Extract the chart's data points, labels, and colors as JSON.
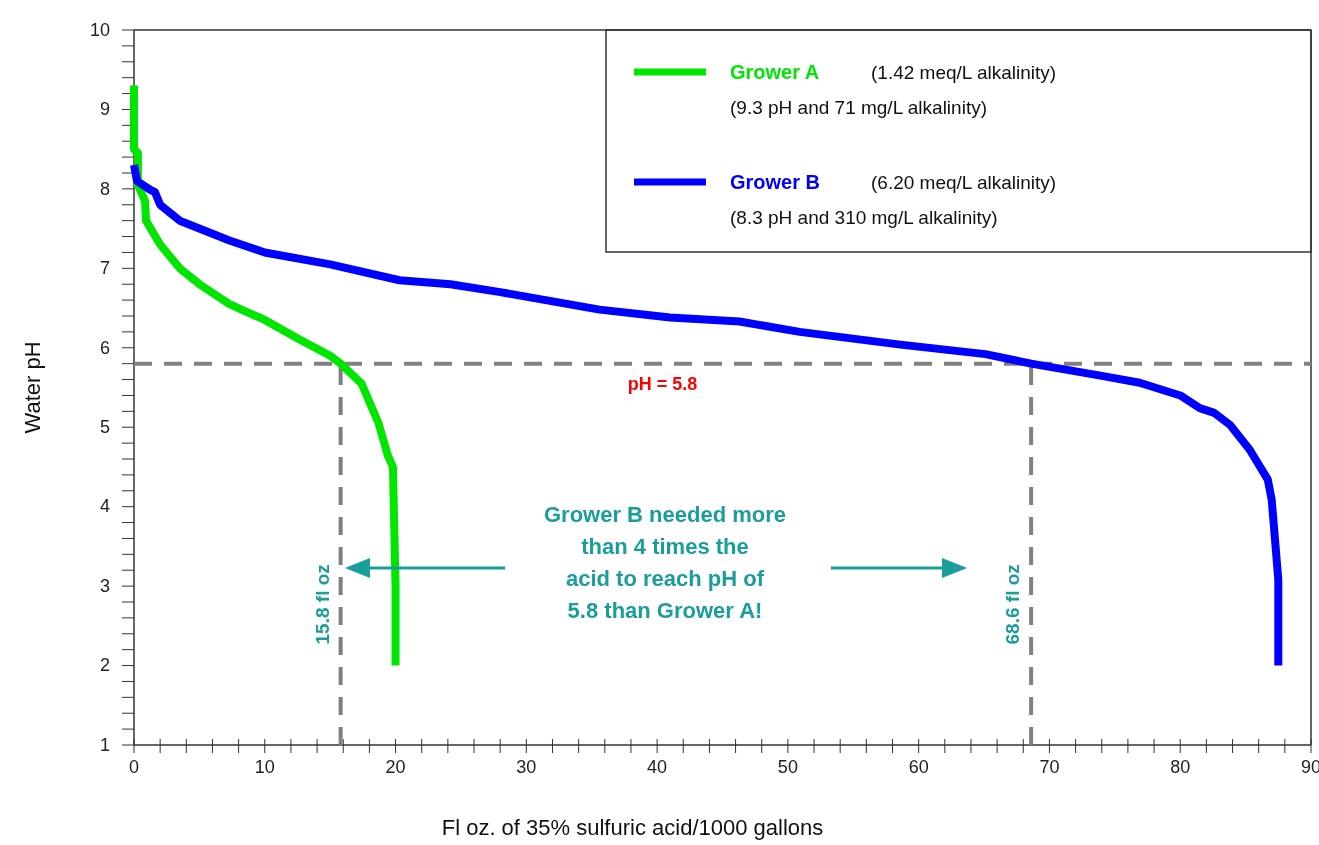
{
  "chart_data": {
    "type": "line",
    "xlabel": "Fl oz. of 35% sulfuric acid/1000 gallons",
    "ylabel": "Water pH",
    "xlim": [
      0,
      90
    ],
    "ylim": [
      1,
      10
    ],
    "xticks": [
      0,
      {
        "value": 2,
        "label": null
      },
      {
        "value": 4,
        "label": null
      },
      {
        "value": 6,
        "label": null
      },
      {
        "value": 8,
        "label": null
      },
      10,
      {
        "value": 12,
        "label": null
      },
      {
        "value": 14,
        "label": null
      },
      {
        "value": 16,
        "label": null
      },
      {
        "value": 18,
        "label": null
      },
      20,
      {
        "value": 22,
        "label": null
      },
      {
        "value": 24,
        "label": null
      },
      {
        "value": 26,
        "label": null
      },
      {
        "value": 28,
        "label": null
      },
      30,
      {
        "value": 32,
        "label": null
      },
      {
        "value": 34,
        "label": null
      },
      {
        "value": 36,
        "label": null
      },
      {
        "value": 38,
        "label": null
      },
      40,
      {
        "value": 42,
        "label": null
      },
      {
        "value": 44,
        "label": null
      },
      {
        "value": 46,
        "label": null
      },
      {
        "value": 48,
        "label": null
      },
      50,
      {
        "value": 52,
        "label": null
      },
      {
        "value": 54,
        "label": null
      },
      {
        "value": 56,
        "label": null
      },
      {
        "value": 58,
        "label": null
      },
      60,
      {
        "value": 62,
        "label": null
      },
      {
        "value": 64,
        "label": null
      },
      {
        "value": 66,
        "label": null
      },
      {
        "value": 68,
        "label": null
      },
      70,
      {
        "value": 72,
        "label": null
      },
      {
        "value": 74,
        "label": null
      },
      {
        "value": 76,
        "label": null
      },
      {
        "value": 78,
        "label": null
      },
      80,
      {
        "value": 82,
        "label": null
      },
      {
        "value": 84,
        "label": null
      },
      {
        "value": 86,
        "label": null
      },
      {
        "value": 88,
        "label": null
      },
      90
    ],
    "yticks": [
      1,
      {
        "value": 1.2,
        "label": null
      },
      {
        "value": 1.4,
        "label": null
      },
      {
        "value": 1.6,
        "label": null
      },
      {
        "value": 1.8,
        "label": null
      },
      2,
      {
        "value": 2.2,
        "label": null
      },
      {
        "value": 2.4,
        "label": null
      },
      {
        "value": 2.6,
        "label": null
      },
      {
        "value": 2.8,
        "label": null
      },
      3,
      {
        "value": 3.2,
        "label": null
      },
      {
        "value": 3.4,
        "label": null
      },
      {
        "value": 3.6,
        "label": null
      },
      {
        "value": 3.8,
        "label": null
      },
      4,
      {
        "value": 4.2,
        "label": null
      },
      {
        "value": 4.4,
        "label": null
      },
      {
        "value": 4.6,
        "label": null
      },
      {
        "value": 4.8,
        "label": null
      },
      5,
      {
        "value": 5.2,
        "label": null
      },
      {
        "value": 5.4,
        "label": null
      },
      {
        "value": 5.6,
        "label": null
      },
      {
        "value": 5.8,
        "label": null
      },
      6,
      {
        "value": 6.2,
        "label": null
      },
      {
        "value": 6.4,
        "label": null
      },
      {
        "value": 6.6,
        "label": null
      },
      {
        "value": 6.8,
        "label": null
      },
      7,
      {
        "value": 7.2,
        "label": null
      },
      {
        "value": 7.4,
        "label": null
      },
      {
        "value": 7.6,
        "label": null
      },
      {
        "value": 7.8,
        "label": null
      },
      8,
      {
        "value": 8.2,
        "label": null
      },
      {
        "value": 8.4,
        "label": null
      },
      {
        "value": 8.6,
        "label": null
      },
      {
        "value": 8.8,
        "label": null
      },
      9,
      {
        "value": 9.2,
        "label": null
      },
      {
        "value": 9.4,
        "label": null
      },
      {
        "value": 9.6,
        "label": null
      },
      {
        "value": 9.8,
        "label": null
      },
      10
    ],
    "series": [
      {
        "name": "Grower A",
        "color": "#00e600",
        "x": [
          0,
          0,
          0.3,
          0.3,
          0.84,
          0.92,
          2.0,
          3.5,
          5.0,
          7.3,
          10.0,
          12.7,
          15.0,
          15.8,
          17.4,
          18.7,
          19.4,
          19.8,
          20.0,
          20.0
        ],
        "values": [
          9.3,
          8.5,
          8.45,
          8.05,
          7.85,
          7.6,
          7.3,
          7.0,
          6.8,
          6.55,
          6.35,
          6.1,
          5.9,
          5.8,
          5.55,
          5.05,
          4.65,
          4.5,
          3.0,
          2.0
        ]
      },
      {
        "name": "Grower B",
        "color": "#0000ff",
        "x": [
          0,
          0.23,
          1.22,
          1.6,
          2.0,
          3.5,
          7.3,
          10.0,
          15.0,
          20.3,
          24.2,
          28.0,
          35.6,
          41.0,
          46.3,
          50.9,
          58.6,
          65.1,
          68.6,
          73.9,
          76.9,
          80.0,
          81.5,
          82.6,
          83.8,
          85.3,
          86.7,
          87.0,
          87.5,
          87.5
        ],
        "values": [
          8.3,
          8.1,
          7.99,
          7.96,
          7.8,
          7.6,
          7.35,
          7.2,
          7.05,
          6.85,
          6.8,
          6.7,
          6.48,
          6.38,
          6.33,
          6.2,
          6.04,
          5.92,
          5.8,
          5.65,
          5.56,
          5.4,
          5.24,
          5.18,
          5.03,
          4.72,
          4.34,
          4.08,
          3.08,
          2.0
        ]
      }
    ],
    "ref_lines": [
      {
        "axis": "y",
        "value": 5.8,
        "label": "pH = 5.8",
        "color": "#808080",
        "line_style": "dashed"
      },
      {
        "axis": "x",
        "value": 15.8,
        "label": "15.8 fl oz",
        "color": "#808080",
        "line_style": "dashed"
      },
      {
        "axis": "x",
        "value": 68.6,
        "label": "68.6 fl oz",
        "color": "#808080",
        "line_style": "dashed"
      }
    ],
    "annotations": [
      "Grower B needed more than 4 times the acid to reach pH of 5.8 than Grower A!",
      "(1.42 meq/L alkalinity)",
      "(9.3 pH and 71 mg/L alkalinity)",
      "(6.20 meq/L alkalinity)",
      "(8.3 pH and 310 mg/L alkalinity)"
    ],
    "legend": "top right",
    "line_style": "solid",
    "marker": "none",
    "grid": false
  }
}
